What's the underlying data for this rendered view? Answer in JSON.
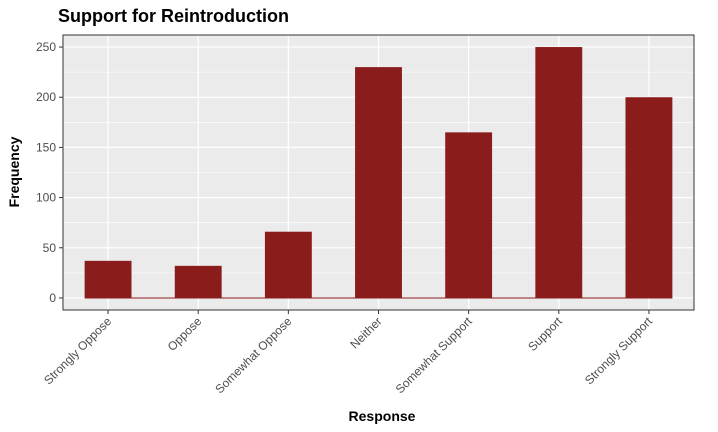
{
  "chart_data": {
    "type": "bar",
    "title": "Support for Reintroduction",
    "xlabel": "Response",
    "ylabel": "Frequency",
    "categories": [
      "Strongly Oppose",
      "Oppose",
      "Somewhat Oppose",
      "Neither",
      "Somewhat Support",
      "Support",
      "Strongly Support"
    ],
    "values": [
      37,
      32,
      66,
      230,
      165,
      250,
      200
    ],
    "ylim": [
      -12,
      262
    ],
    "yticks": [
      0,
      50,
      100,
      150,
      200,
      250
    ],
    "grid": true,
    "bar_color": "#8b1c1c",
    "panel_color": "#ebebeb",
    "grid_color": "#ffffff"
  }
}
